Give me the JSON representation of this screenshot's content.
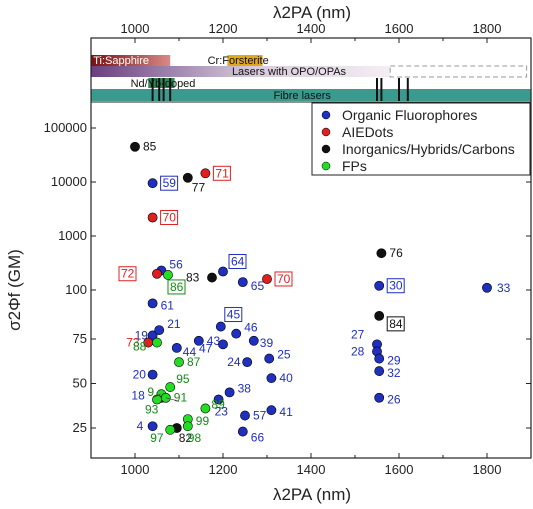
{
  "chart_data": {
    "type": "scatter",
    "xlabel": "λ2PA (nm)",
    "ylabel": "σ2Φf (GM)",
    "xlim": [
      900,
      1900
    ],
    "xticks": [
      1000,
      1200,
      1400,
      1600,
      1800
    ],
    "ylog_upper": [
      100,
      100000
    ],
    "ylinear_lower": [
      15,
      90
    ],
    "yticks_upper": [
      100,
      1000,
      10000,
      100000
    ],
    "yticks_lower": [
      25,
      50,
      75
    ],
    "legend": [
      {
        "name": "Organic Fluorophores",
        "color": "#1f2fbf"
      },
      {
        "name": "AIEDots",
        "color": "#e02020"
      },
      {
        "name": "Inorganics/Hybrids/Carbons",
        "color": "#111111"
      },
      {
        "name": "FPs",
        "color": "#22dd22"
      }
    ],
    "laser_bands": [
      {
        "label": "Ti:Sapphire",
        "range": [
          900,
          1080
        ],
        "color": "#a02828"
      },
      {
        "label": "Cr:Forsterite",
        "range": [
          1210,
          1290
        ],
        "color": "#e0a820"
      },
      {
        "label": "Lasers with OPO/OPAs",
        "range": [
          900,
          1900
        ],
        "color": "#9a7ea8"
      },
      {
        "label": "Nd/Yb-doped",
        "range": [
          1030,
          1090
        ],
        "color": "#2e8b57"
      },
      {
        "label": "Fibre lasers",
        "range": [
          900,
          1900
        ],
        "color": "#3a9a8e"
      }
    ],
    "series": [
      {
        "name": "Organic Fluorophores",
        "points": [
          {
            "id": "59",
            "x": 1040,
            "y": 9500,
            "boxed": true
          },
          {
            "id": "56",
            "x": 1060,
            "y": 230
          },
          {
            "id": "61",
            "x": 1040,
            "y": 95
          },
          {
            "id": "64",
            "x": 1200,
            "y": 220,
            "boxed": true
          },
          {
            "id": "65",
            "x": 1245,
            "y": 140
          },
          {
            "id": "30",
            "x": 1555,
            "y": 120,
            "boxed": true
          },
          {
            "id": "33",
            "x": 1800,
            "y": 110
          },
          {
            "id": "19",
            "x": 1040,
            "y": 77
          },
          {
            "id": "21",
            "x": 1055,
            "y": 80
          },
          {
            "id": "45",
            "x": 1195,
            "y": 82,
            "boxed": true
          },
          {
            "id": "46",
            "x": 1230,
            "y": 78
          },
          {
            "id": "43",
            "x": 1145,
            "y": 74
          },
          {
            "id": "47",
            "x": 1200,
            "y": 72
          },
          {
            "id": "39",
            "x": 1270,
            "y": 74
          },
          {
            "id": "44",
            "x": 1095,
            "y": 70
          },
          {
            "id": "27",
            "x": 1550,
            "y": 72
          },
          {
            "id": "28",
            "x": 1550,
            "y": 68
          },
          {
            "id": "29",
            "x": 1555,
            "y": 64
          },
          {
            "id": "24",
            "x": 1255,
            "y": 62
          },
          {
            "id": "25",
            "x": 1305,
            "y": 64
          },
          {
            "id": "32",
            "x": 1555,
            "y": 57
          },
          {
            "id": "20",
            "x": 1040,
            "y": 55
          },
          {
            "id": "40",
            "x": 1310,
            "y": 53
          },
          {
            "id": "38",
            "x": 1215,
            "y": 45
          },
          {
            "id": "18",
            "x": 1060,
            "y": 42
          },
          {
            "id": "23",
            "x": 1190,
            "y": 41
          },
          {
            "id": "26",
            "x": 1555,
            "y": 42
          },
          {
            "id": "41",
            "x": 1310,
            "y": 35
          },
          {
            "id": "57",
            "x": 1250,
            "y": 32
          },
          {
            "id": "4",
            "x": 1040,
            "y": 26
          },
          {
            "id": "66",
            "x": 1245,
            "y": 23
          }
        ]
      },
      {
        "name": "AIEDots",
        "points": [
          {
            "id": "71",
            "x": 1160,
            "y": 14500,
            "boxed": true
          },
          {
            "id": "70",
            "x": 1040,
            "y": 2200,
            "boxed": true
          },
          {
            "id": "72",
            "x": 1050,
            "y": 200,
            "boxed": true
          },
          {
            "id": "70",
            "x": 1300,
            "y": 160,
            "boxed": true
          },
          {
            "id": "73",
            "x": 1030,
            "y": 73
          }
        ]
      },
      {
        "name": "Inorganics/Hybrids/Carbons",
        "points": [
          {
            "id": "85",
            "x": 1000,
            "y": 45000
          },
          {
            "id": "77",
            "x": 1120,
            "y": 12000
          },
          {
            "id": "83",
            "x": 1175,
            "y": 170
          },
          {
            "id": "76",
            "x": 1560,
            "y": 480
          },
          {
            "id": "84",
            "x": 1555,
            "y": 88,
            "boxed": true
          },
          {
            "id": "82",
            "x": 1095,
            "y": 25
          }
        ]
      },
      {
        "name": "FPs",
        "points": [
          {
            "id": "86",
            "x": 1075,
            "y": 190,
            "boxed": true
          },
          {
            "id": "88",
            "x": 1050,
            "y": 73
          },
          {
            "id": "87",
            "x": 1100,
            "y": 62
          },
          {
            "id": "95",
            "x": 1080,
            "y": 48
          },
          {
            "id": "9",
            "x": 1060,
            "y": 44
          },
          {
            "id": "91",
            "x": 1070,
            "y": 42
          },
          {
            "id": "93",
            "x": 1050,
            "y": 41
          },
          {
            "id": "89",
            "x": 1160,
            "y": 36
          },
          {
            "id": "99",
            "x": 1120,
            "y": 30
          },
          {
            "id": "98",
            "x": 1120,
            "y": 26
          },
          {
            "id": "97",
            "x": 1080,
            "y": 24
          }
        ]
      }
    ]
  }
}
